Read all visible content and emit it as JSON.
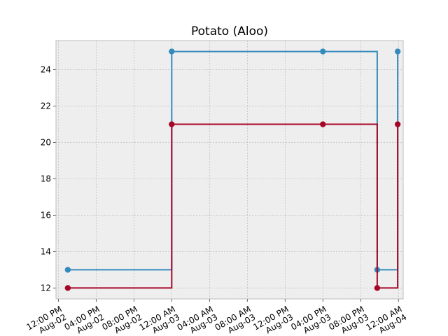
{
  "chart_data": {
    "type": "line",
    "drawstyle": "steps-post",
    "title": "Potato (Aloo)",
    "xlabel": "",
    "ylabel": "",
    "x_ticks": [
      {
        "time": "2023-08-02 12:00",
        "label_line1": "12:00 PM",
        "label_line2": "Aug-02"
      },
      {
        "time": "2023-08-02 16:00",
        "label_line1": "04:00 PM",
        "label_line2": "Aug-02"
      },
      {
        "time": "2023-08-02 20:00",
        "label_line1": "08:00 PM",
        "label_line2": "Aug-02"
      },
      {
        "time": "2023-08-03 00:00",
        "label_line1": "12:00 AM",
        "label_line2": "Aug-03"
      },
      {
        "time": "2023-08-03 04:00",
        "label_line1": "04:00 AM",
        "label_line2": "Aug-03"
      },
      {
        "time": "2023-08-03 08:00",
        "label_line1": "08:00 AM",
        "label_line2": "Aug-03"
      },
      {
        "time": "2023-08-03 12:00",
        "label_line1": "12:00 PM",
        "label_line2": "Aug-03"
      },
      {
        "time": "2023-08-03 16:00",
        "label_line1": "04:00 PM",
        "label_line2": "Aug-03"
      },
      {
        "time": "2023-08-03 20:00",
        "label_line1": "08:00 PM",
        "label_line2": "Aug-03"
      },
      {
        "time": "2023-08-04 00:00",
        "label_line1": "12:00 AM",
        "label_line2": "Aug-04"
      }
    ],
    "xlim": [
      "2023-08-02 11:45",
      "2023-08-04 00:30"
    ],
    "y_ticks": [
      12,
      14,
      16,
      18,
      20,
      22,
      24
    ],
    "ylim": [
      11.4,
      25.6
    ],
    "grid": true,
    "legend": "none",
    "series": [
      {
        "color": "#348ABD",
        "points": [
          {
            "x": "2023-08-02 13:00",
            "y": 13
          },
          {
            "x": "2023-08-03 00:00",
            "y": 25
          },
          {
            "x": "2023-08-03 16:00",
            "y": 25
          },
          {
            "x": "2023-08-03 21:45",
            "y": 13
          },
          {
            "x": "2023-08-03 23:55",
            "y": 25
          }
        ]
      },
      {
        "color": "#A60628",
        "points": [
          {
            "x": "2023-08-02 13:00",
            "y": 12
          },
          {
            "x": "2023-08-03 00:00",
            "y": 21
          },
          {
            "x": "2023-08-03 16:00",
            "y": 21
          },
          {
            "x": "2023-08-03 21:45",
            "y": 12
          },
          {
            "x": "2023-08-03 23:55",
            "y": 21
          }
        ]
      }
    ]
  }
}
